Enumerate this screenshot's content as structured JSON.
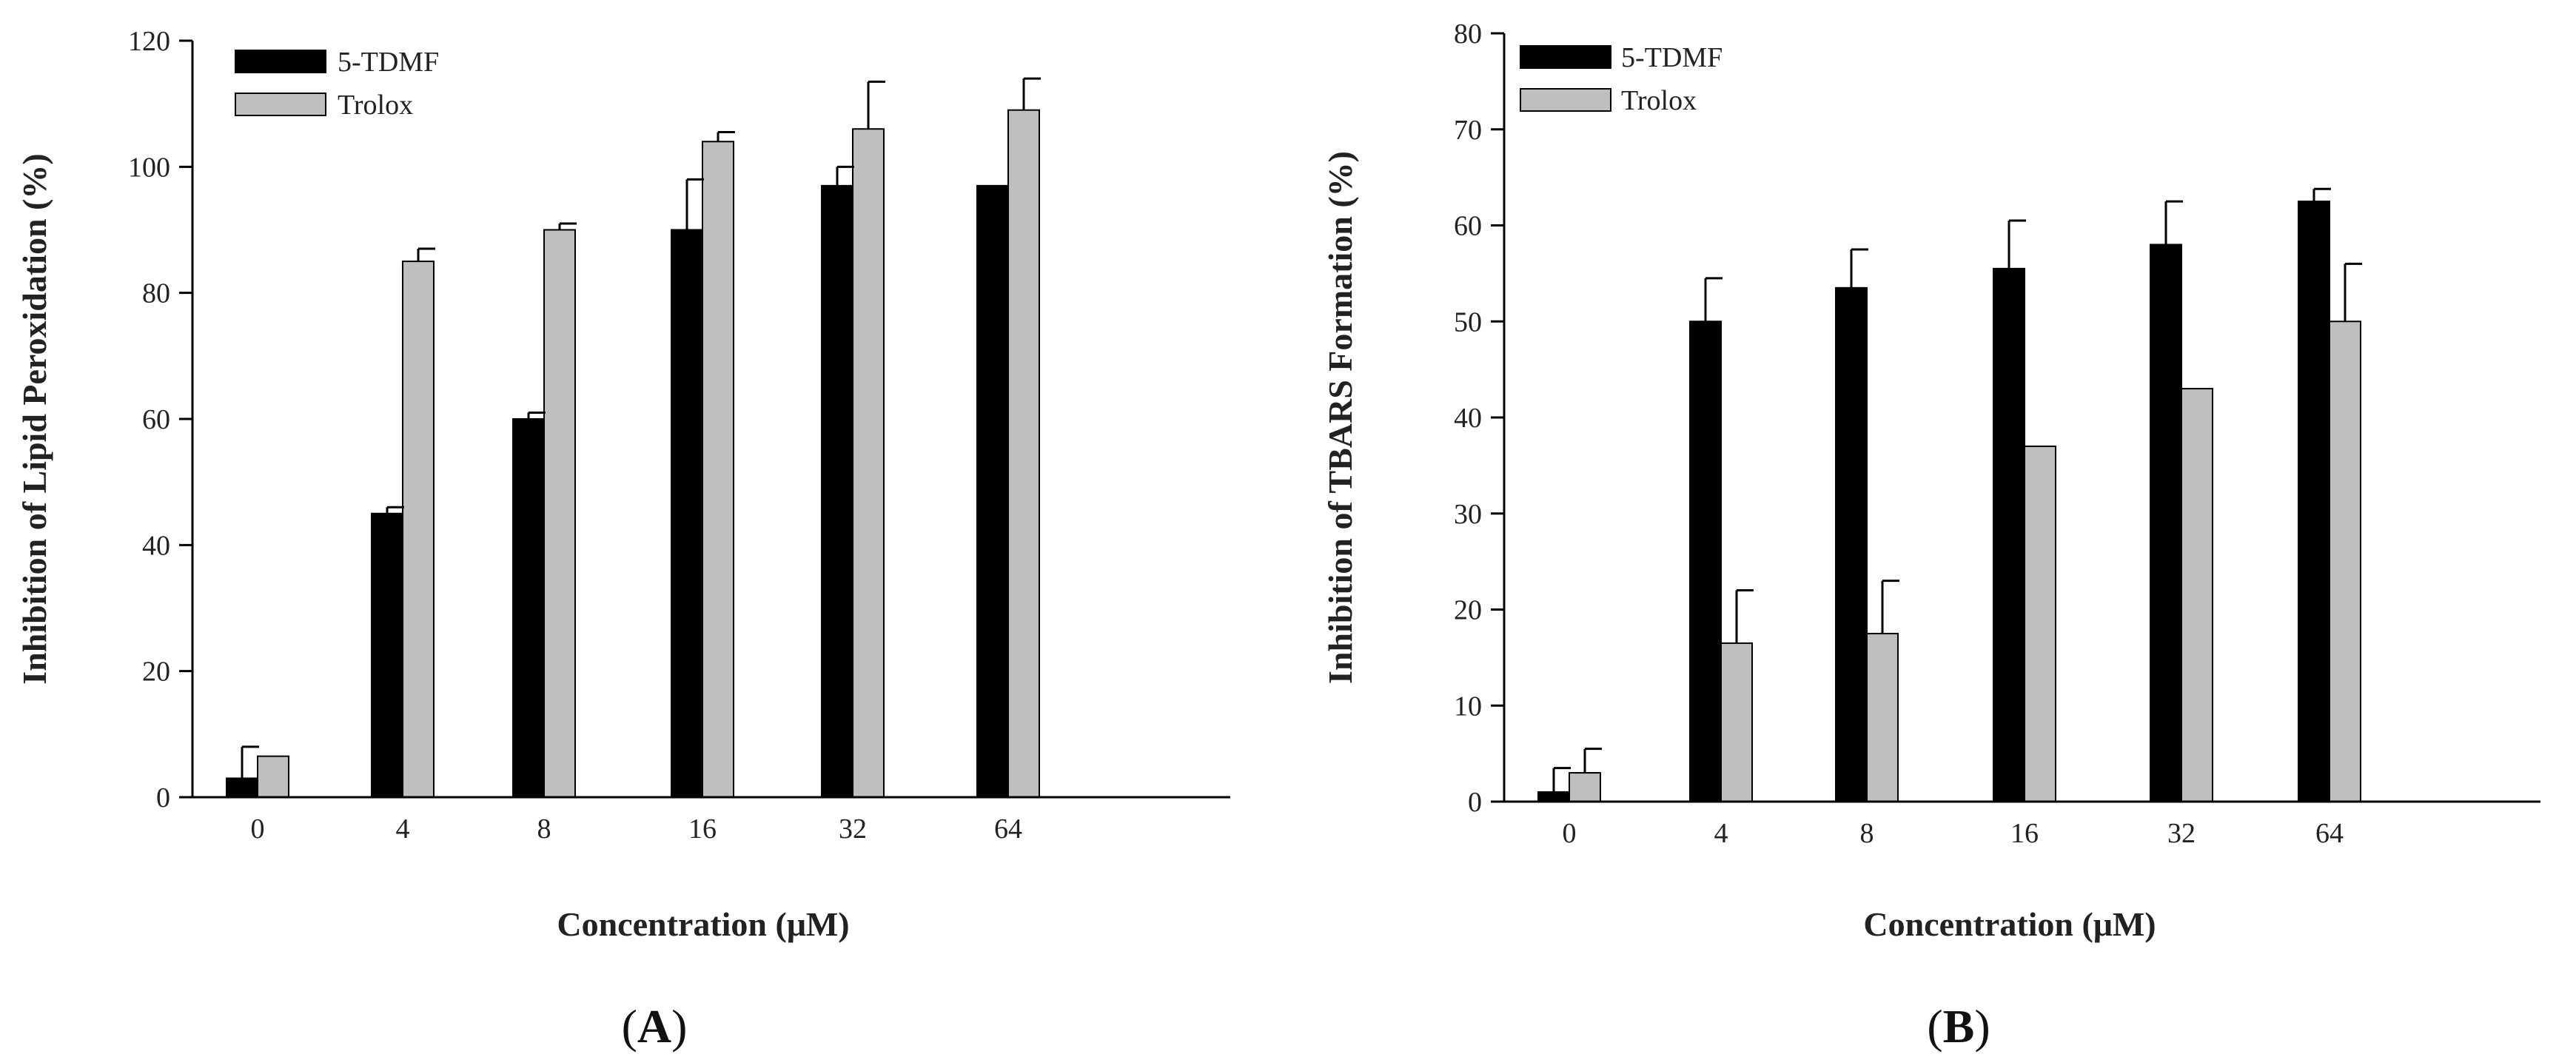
{
  "chart_data": [
    {
      "type": "bar",
      "panel_label": "A",
      "categories": [
        "0",
        "4",
        "8",
        "16",
        "32",
        "64"
      ],
      "series": [
        {
          "name": "5-TDMF",
          "color": "#000000",
          "values": [
            3,
            45,
            60,
            90,
            97,
            97
          ],
          "errors": [
            5,
            1,
            1,
            8,
            3,
            0
          ]
        },
        {
          "name": "Trolox",
          "color": "#bfbfbf",
          "values": [
            6.5,
            85,
            90,
            104,
            106,
            109
          ],
          "errors": [
            0,
            2,
            1,
            1.5,
            7.5,
            5
          ]
        }
      ],
      "xlabel": "Concentration (μM)",
      "ylabel": "Inhibition of Lipid Peroxidation (%)",
      "ylim": [
        0,
        120
      ],
      "yticks": [
        "0",
        "20",
        "40",
        "60",
        "80",
        "100",
        "120"
      ],
      "legend_position": "top-left"
    },
    {
      "type": "bar",
      "panel_label": "B",
      "categories": [
        "0",
        "4",
        "8",
        "16",
        "32",
        "64"
      ],
      "series": [
        {
          "name": "5-TDMF",
          "color": "#000000",
          "values": [
            1,
            50,
            53.5,
            55.5,
            58,
            62.5
          ],
          "errors": [
            2.5,
            4.5,
            4,
            5,
            4.5,
            1.3
          ]
        },
        {
          "name": "Trolox",
          "color": "#bfbfbf",
          "values": [
            3,
            16.5,
            17.5,
            37,
            43,
            50
          ],
          "errors": [
            2.5,
            5.5,
            5.5,
            0,
            0,
            6
          ]
        }
      ],
      "xlabel": "Concentration (μM)",
      "ylabel": "Inhibition of TBARS Formation (%)",
      "ylim": [
        0,
        80
      ],
      "yticks": [
        "0",
        "10",
        "20",
        "30",
        "40",
        "50",
        "60",
        "70",
        "80"
      ],
      "legend_position": "top-left"
    }
  ]
}
